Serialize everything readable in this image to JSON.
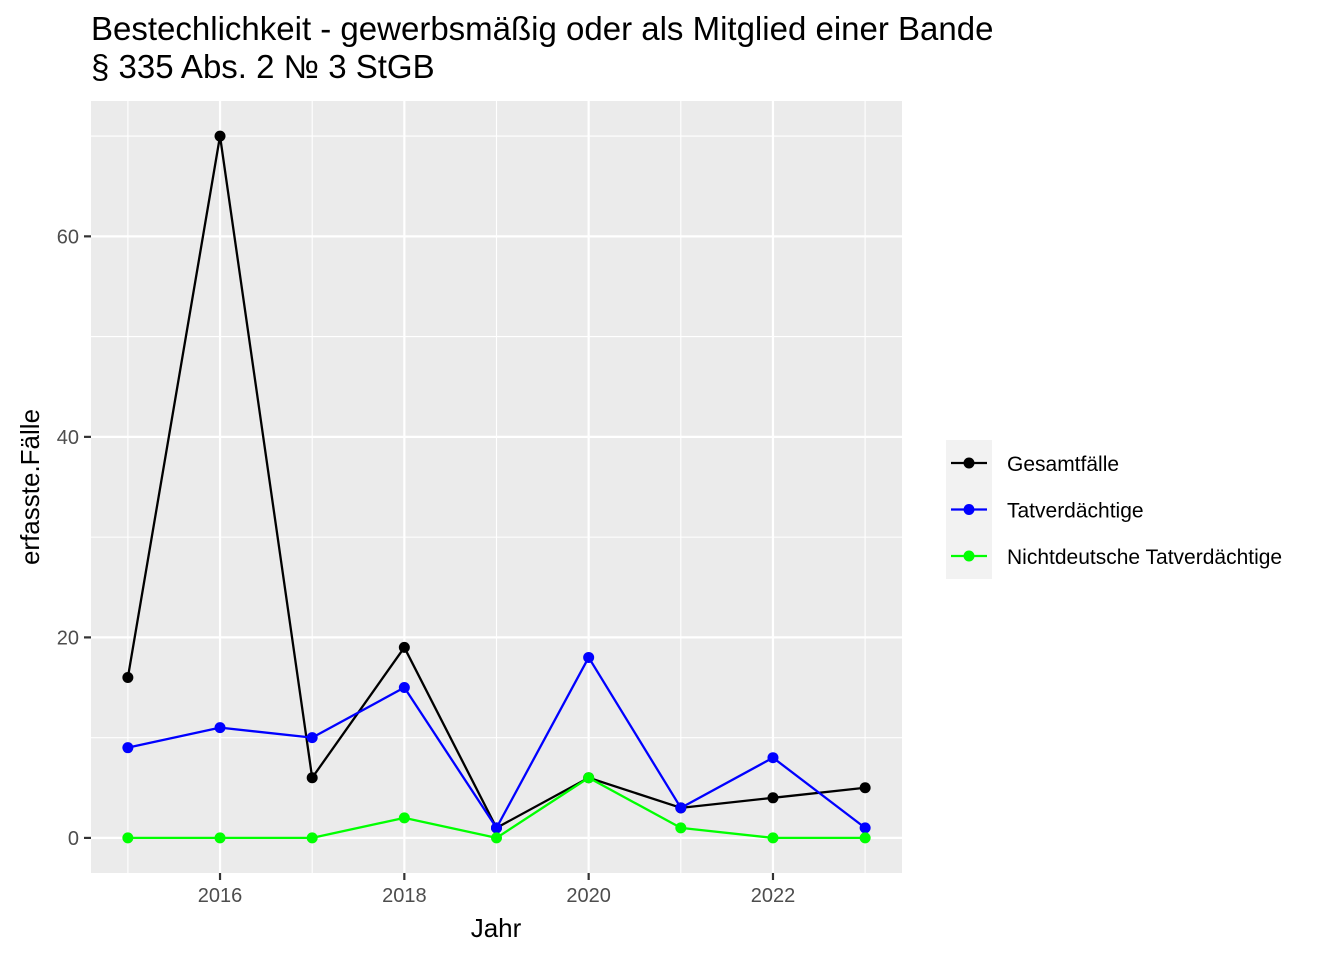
{
  "chart_data": {
    "type": "line",
    "title": "Bestechlichkeit - gewerbsmäßig oder als Mitglied einer Bande",
    "subtitle": "§ 335 Abs. 2 № 3 StGB",
    "xlabel": "Jahr",
    "ylabel": "erfasste.Fälle",
    "x": [
      2015,
      2016,
      2017,
      2018,
      2019,
      2020,
      2021,
      2022,
      2023
    ],
    "xlim": [
      2014.6,
      2023.4
    ],
    "ylim": [
      -3.5,
      73.5
    ],
    "x_ticks": [
      2016,
      2018,
      2020,
      2022
    ],
    "y_ticks": [
      0,
      20,
      40,
      60
    ],
    "grid": true,
    "legend_position": "right",
    "series": [
      {
        "name": "Gesamtfälle",
        "color": "#000000",
        "values": [
          16,
          70,
          6,
          19,
          1,
          6,
          3,
          4,
          5
        ]
      },
      {
        "name": "Tatverdächtige",
        "color": "#0000ff",
        "values": [
          9,
          11,
          10,
          15,
          1,
          18,
          3,
          8,
          1
        ]
      },
      {
        "name": "Nichtdeutsche Tatverdächtige",
        "color": "#00ff00",
        "values": [
          0,
          0,
          0,
          2,
          0,
          6,
          1,
          0,
          0
        ]
      }
    ]
  }
}
